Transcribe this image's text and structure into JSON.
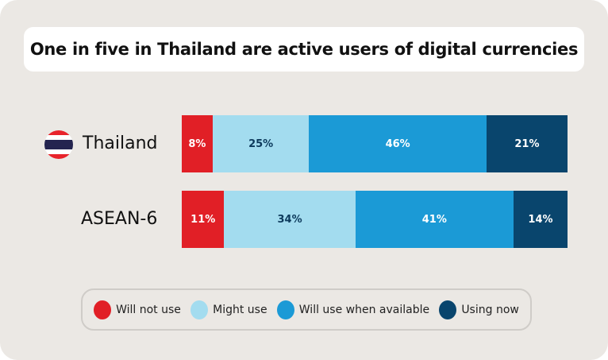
{
  "chart_data": {
    "type": "bar",
    "orientation": "horizontal-stacked",
    "title": "One in five in Thailand are active users of digital currencies",
    "categories": [
      "Thailand",
      "ASEAN-6"
    ],
    "series": [
      {
        "name": "Will not use",
        "color": "#e11f26",
        "label_color": "#ffffff",
        "values": [
          8,
          11
        ]
      },
      {
        "name": "Might use",
        "color": "#a3dcef",
        "label_color": "#0d3a5c",
        "values": [
          25,
          34
        ]
      },
      {
        "name": "Will use when available",
        "color": "#1b9ad6",
        "label_color": "#ffffff",
        "values": [
          46,
          41
        ]
      },
      {
        "name": "Using now",
        "color": "#09456d",
        "label_color": "#ffffff",
        "values": [
          21,
          14
        ]
      }
    ],
    "xlim": [
      0,
      100
    ],
    "legend": "bottom"
  }
}
